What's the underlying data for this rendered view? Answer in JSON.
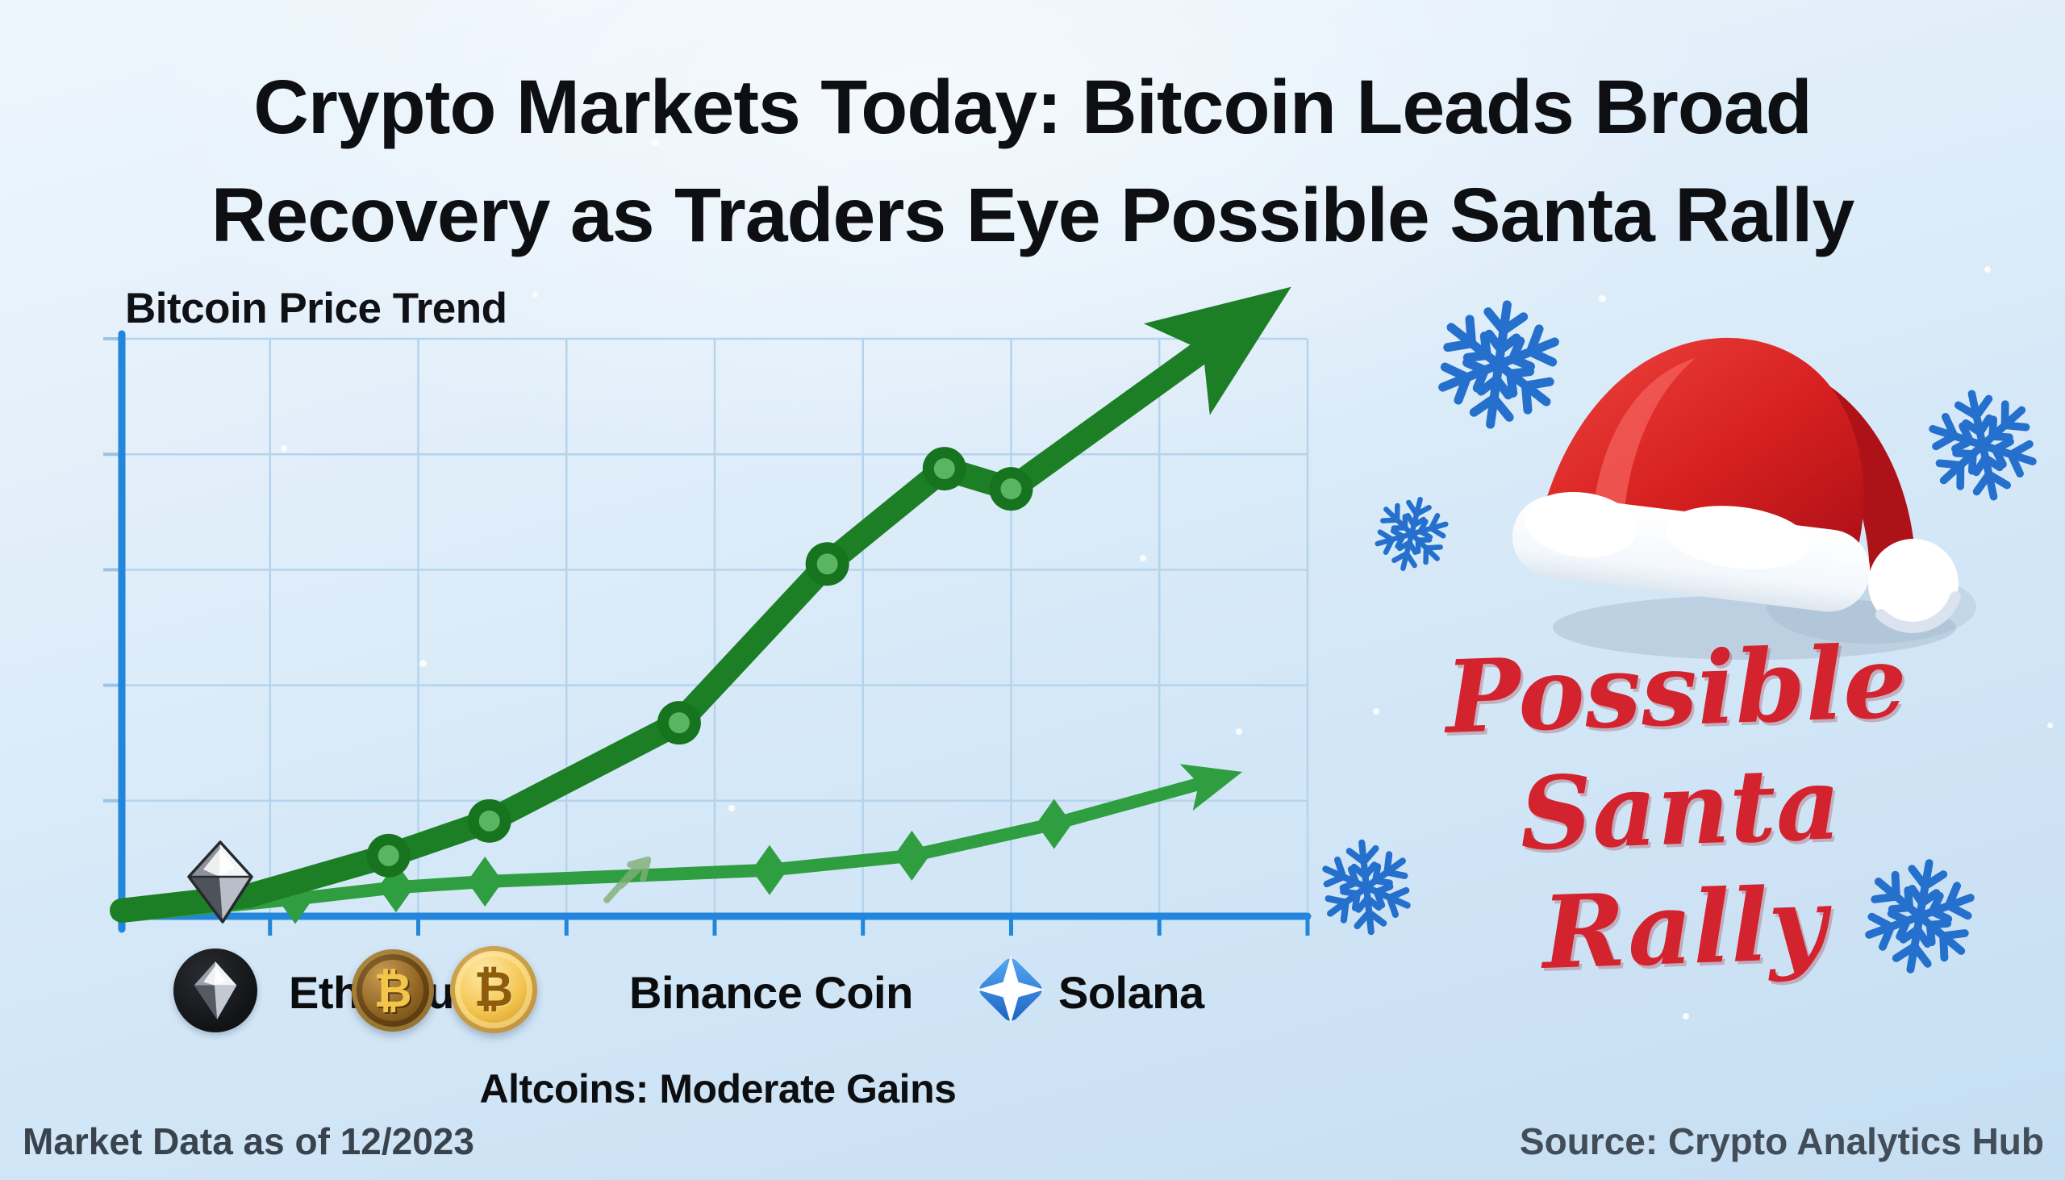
{
  "header": {
    "title_line1": "Crypto Markets Today: Bitcoin Leads Broad",
    "title_line2": "Recovery as Traders Eye Possible Santa Rally"
  },
  "chart": {
    "title": "Bitcoin Price Trend"
  },
  "chart_data": {
    "type": "line",
    "title": "Bitcoin Price Trend",
    "xlabel": "",
    "ylabel": "",
    "x_axis": {
      "tick_labels": [],
      "gridline_count": 8
    },
    "y_axis": {
      "tick_labels": [],
      "range": [
        0,
        100
      ],
      "gridline_values": [
        0,
        20,
        40,
        60,
        80,
        100
      ]
    },
    "grid": true,
    "legend_position": "below",
    "series": [
      {
        "name": "Bitcoin",
        "color": "#1d7f25",
        "width": 30,
        "marker": "circle",
        "marker_fill": "#5bb461",
        "arrow_end": "large",
        "x": [
          0,
          0.85,
          1.8,
          2.48,
          3.76,
          4.76,
          5.55,
          6.0,
          7.89
        ],
        "values": [
          1,
          3.5,
          10.5,
          16.5,
          33.5,
          61,
          77.5,
          74,
          109
        ],
        "marker_indices": [
          2,
          3,
          4,
          5,
          6,
          7
        ]
      },
      {
        "name": "Altcoins",
        "color": "#2e9e40",
        "width": 16,
        "marker": "diamond",
        "arrow_end": "small",
        "x": [
          0,
          1.17,
          1.85,
          2.45,
          3.43,
          4.37,
          5.33,
          6.29,
          7.56
        ],
        "values": [
          0,
          3,
          5,
          6,
          7,
          8,
          10.5,
          16,
          25
        ],
        "marker_indices": [
          1,
          2,
          3,
          5,
          6,
          7
        ],
        "sketch_mark_index": 4
      }
    ],
    "annotations": [
      "Altcoins: Moderate Gains"
    ]
  },
  "legend": {
    "ethereum": "Ethereum",
    "binance": "Binance Coin",
    "solana": "Solana",
    "bitcoin_symbol": "₿",
    "subtitle": "Altcoins: Moderate Gains"
  },
  "badge": {
    "line1": "Possible",
    "line2": "Santa",
    "line3": "Rally"
  },
  "footer": {
    "left": "Market Data as of 12/2023",
    "right": "Source: Crypto Analytics Hub"
  },
  "colors": {
    "line_green": "#1d7f25",
    "light_green": "#2e9e40",
    "axis_blue": "#2186dc",
    "grid_blue": "#b5d4ec",
    "santa_red": "#d2232e",
    "snowflake_blue": "#2470cc",
    "background_top": "#eef6fd",
    "background_bottom": "#c6def2"
  }
}
